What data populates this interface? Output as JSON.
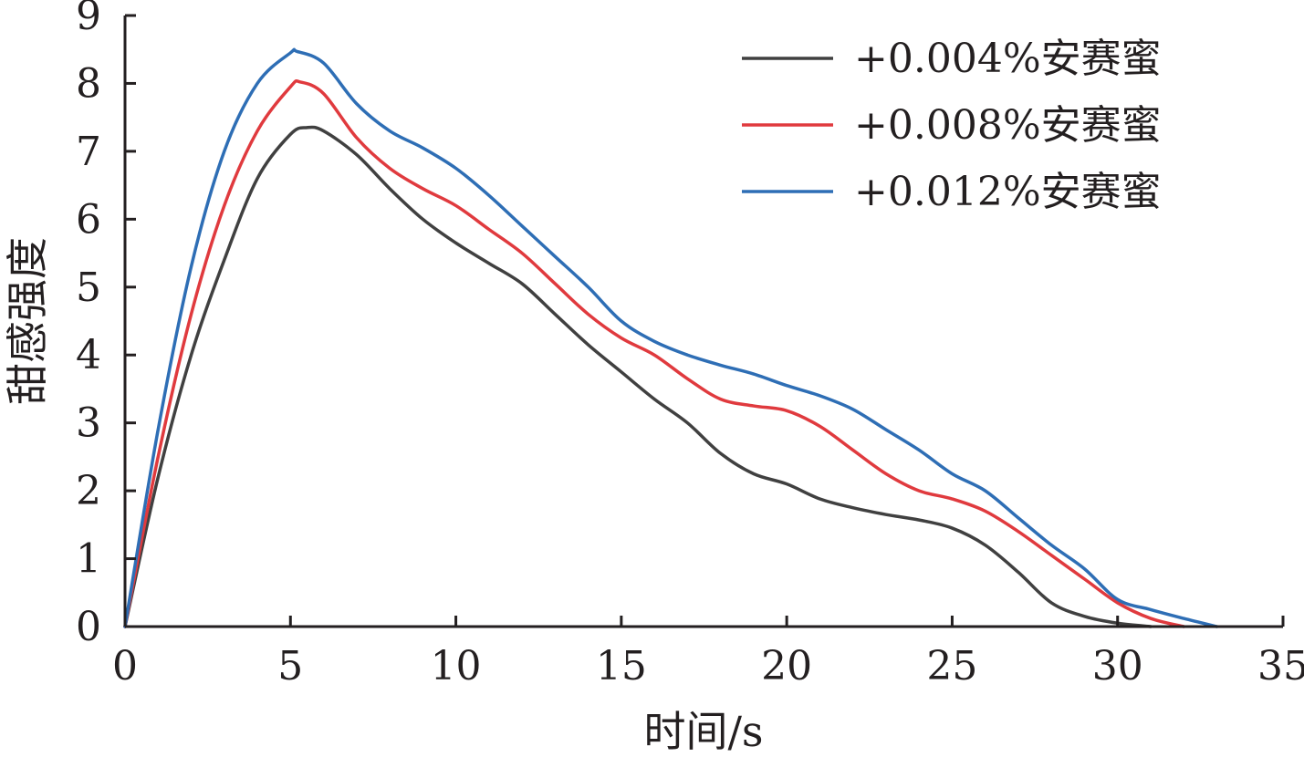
{
  "chart_data": {
    "type": "line",
    "title": "",
    "xlabel": "时间/s",
    "ylabel": "甜感强度",
    "xlim": [
      0,
      35
    ],
    "ylim": [
      0,
      9
    ],
    "x_ticks": [
      0,
      5,
      10,
      15,
      20,
      25,
      30,
      35
    ],
    "y_ticks": [
      0,
      1,
      2,
      3,
      4,
      5,
      6,
      7,
      8,
      9
    ],
    "legend_position": "top-right",
    "grid": false,
    "series": [
      {
        "name": "+0.004%安赛蜜",
        "color": "#404040",
        "x": [
          0,
          1,
          2,
          3,
          4,
          5,
          5.5,
          6,
          7,
          8,
          9,
          10,
          11,
          12,
          13,
          14,
          15,
          16,
          17,
          18,
          19,
          20,
          21,
          22,
          23,
          24,
          25,
          26,
          27,
          28,
          29,
          30,
          31
        ],
        "y": [
          0,
          2.2,
          4.0,
          5.4,
          6.6,
          7.25,
          7.35,
          7.3,
          6.95,
          6.45,
          6.0,
          5.65,
          5.35,
          5.05,
          4.6,
          4.15,
          3.75,
          3.35,
          3.0,
          2.55,
          2.25,
          2.1,
          1.88,
          1.75,
          1.65,
          1.57,
          1.45,
          1.2,
          0.8,
          0.35,
          0.15,
          0.05,
          0
        ]
      },
      {
        "name": "+0.008%安赛蜜",
        "color": "#e03a3e",
        "x": [
          0,
          1,
          2,
          3,
          4,
          5,
          5.3,
          6,
          7,
          8,
          9,
          10,
          11,
          12,
          13,
          14,
          15,
          16,
          17,
          18,
          19,
          20,
          21,
          22,
          23,
          24,
          25,
          26,
          27,
          28,
          29,
          30,
          31,
          32
        ],
        "y": [
          0,
          2.5,
          4.6,
          6.2,
          7.3,
          7.95,
          8.02,
          7.85,
          7.2,
          6.75,
          6.45,
          6.2,
          5.85,
          5.5,
          5.05,
          4.6,
          4.25,
          4.0,
          3.65,
          3.35,
          3.25,
          3.18,
          2.95,
          2.6,
          2.25,
          2.0,
          1.88,
          1.7,
          1.4,
          1.05,
          0.7,
          0.35,
          0.12,
          0
        ]
      },
      {
        "name": "+0.012%安赛蜜",
        "color": "#2e6eb5",
        "x": [
          0,
          1,
          2,
          3,
          4,
          5,
          5.2,
          6,
          7,
          8,
          9,
          10,
          11,
          12,
          13,
          14,
          15,
          16,
          17,
          18,
          19,
          20,
          21,
          22,
          23,
          24,
          25,
          26,
          27,
          28,
          29,
          30,
          31,
          32,
          33
        ],
        "y": [
          0,
          2.9,
          5.3,
          7.0,
          8.0,
          8.45,
          8.47,
          8.3,
          7.7,
          7.3,
          7.05,
          6.75,
          6.35,
          5.9,
          5.45,
          5.0,
          4.5,
          4.2,
          4.0,
          3.85,
          3.72,
          3.55,
          3.4,
          3.2,
          2.9,
          2.6,
          2.25,
          2.0,
          1.6,
          1.2,
          0.85,
          0.4,
          0.25,
          0.12,
          0
        ]
      }
    ]
  }
}
